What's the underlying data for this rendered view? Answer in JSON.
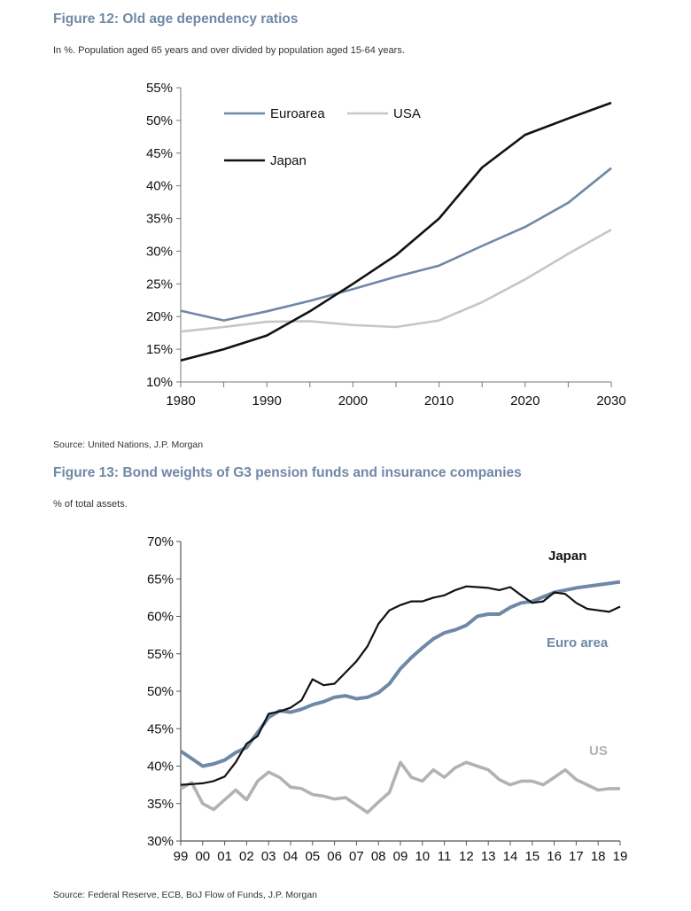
{
  "figure12": {
    "title": "Figure 12: Old age dependency ratios",
    "subtitle": "In %. Population aged 65 years and over divided by population aged 15-64 years.",
    "source": "Source: United Nations, J.P. Morgan"
  },
  "figure13": {
    "title": "Figure 13: Bond weights of G3 pension funds and insurance companies",
    "subtitle": "% of total assets.",
    "source": "Source: Federal Reserve, ECB, BoJ Flow of Funds, J.P. Morgan"
  },
  "chart_data": [
    {
      "type": "line",
      "title": "Figure 12: Old age dependency ratios",
      "xlabel": "",
      "ylabel": "",
      "xlim": [
        1980,
        2030
      ],
      "ylim": [
        10,
        55
      ],
      "x_ticks": [
        "1980",
        "1990",
        "2000",
        "2010",
        "2020",
        "2030"
      ],
      "y_ticks": [
        "10%",
        "15%",
        "20%",
        "25%",
        "30%",
        "35%",
        "40%",
        "45%",
        "50%",
        "55%"
      ],
      "legend_position": "top-left",
      "grid": false,
      "x": [
        1980,
        1985,
        1990,
        1995,
        2000,
        2005,
        2010,
        2015,
        2020,
        2025,
        2030
      ],
      "series": [
        {
          "name": "Euroarea",
          "color": "#6f88a6",
          "values": [
            20.9,
            19.4,
            20.8,
            22.4,
            24.2,
            26.1,
            27.8,
            30.8,
            33.7,
            37.4,
            42.7
          ]
        },
        {
          "name": "USA",
          "color": "#c4c6c8",
          "values": [
            17.7,
            18.4,
            19.2,
            19.3,
            18.7,
            18.4,
            19.4,
            22.2,
            25.7,
            29.6,
            33.3
          ]
        },
        {
          "name": "Japan",
          "color": "#111111",
          "values": [
            13.3,
            15.0,
            17.1,
            20.8,
            25.0,
            29.4,
            35.0,
            42.8,
            47.8,
            50.3,
            52.7
          ]
        }
      ]
    },
    {
      "type": "line",
      "title": "Figure 13: Bond weights of G3 pension funds and insurance companies",
      "xlabel": "",
      "ylabel": "",
      "xlim": [
        1999,
        2019
      ],
      "ylim": [
        30,
        70
      ],
      "x_ticks": [
        "99",
        "00",
        "01",
        "02",
        "03",
        "04",
        "05",
        "06",
        "07",
        "08",
        "09",
        "10",
        "11",
        "12",
        "13",
        "14",
        "15",
        "16",
        "17",
        "18",
        "19"
      ],
      "y_ticks": [
        "30%",
        "35%",
        "40%",
        "45%",
        "50%",
        "55%",
        "60%",
        "65%",
        "70%"
      ],
      "legend_position": "inline labels",
      "grid": false,
      "series": [
        {
          "name": "Japan",
          "color": "#111111",
          "x": [
            1999.0,
            1999.5,
            2000.0,
            2000.5,
            2001.0,
            2001.5,
            2002.0,
            2002.5,
            2003.0,
            2003.5,
            2004.0,
            2004.5,
            2005.0,
            2005.5,
            2006.0,
            2006.5,
            2007.0,
            2007.5,
            2008.0,
            2008.5,
            2009.0,
            2009.5,
            2010.0,
            2010.5,
            2011.0,
            2011.5,
            2012.0,
            2012.5,
            2013.0,
            2013.5,
            2014.0,
            2014.5,
            2015.0,
            2015.5,
            2016.0,
            2016.5,
            2017.0,
            2017.5,
            2018.0,
            2018.5,
            2019.0
          ],
          "values": [
            37.5,
            37.6,
            37.7,
            38.0,
            38.6,
            40.5,
            43.0,
            44.0,
            47.0,
            47.3,
            47.8,
            48.8,
            51.6,
            50.8,
            51.0,
            52.5,
            54.0,
            56.0,
            59.0,
            60.8,
            61.5,
            62.0,
            62.0,
            62.5,
            62.8,
            63.5,
            64.0,
            63.9,
            63.8,
            63.5,
            63.9,
            62.8,
            61.8,
            62.0,
            63.2,
            63.0,
            61.8,
            61.0,
            60.8,
            60.6,
            61.3
          ]
        },
        {
          "name": "Euro area",
          "color": "#6f88a6",
          "x": [
            1999.0,
            1999.5,
            2000.0,
            2000.5,
            2001.0,
            2001.5,
            2002.0,
            2002.5,
            2003.0,
            2003.5,
            2004.0,
            2004.5,
            2005.0,
            2005.5,
            2006.0,
            2006.5,
            2007.0,
            2007.5,
            2008.0,
            2008.5,
            2009.0,
            2009.5,
            2010.0,
            2010.5,
            2011.0,
            2011.5,
            2012.0,
            2012.5,
            2013.0,
            2013.5,
            2014.0,
            2014.5,
            2015.0,
            2015.5,
            2016.0,
            2016.5,
            2017.0,
            2017.5,
            2018.0,
            2018.5,
            2019.0
          ],
          "values": [
            42.0,
            41.0,
            40.0,
            40.3,
            40.8,
            41.8,
            42.5,
            44.5,
            46.5,
            47.4,
            47.2,
            47.6,
            48.2,
            48.6,
            49.2,
            49.4,
            49.0,
            49.2,
            49.8,
            51.0,
            53.0,
            54.5,
            55.8,
            57.0,
            57.8,
            58.2,
            58.8,
            60.0,
            60.3,
            60.3,
            61.2,
            61.8,
            62.0,
            62.6,
            63.2,
            63.5,
            63.8,
            64.0,
            64.2,
            64.4,
            64.6
          ]
        },
        {
          "name": "US",
          "color": "#b0b2b4",
          "x": [
            1999.0,
            1999.5,
            2000.0,
            2000.5,
            2001.0,
            2001.5,
            2002.0,
            2002.5,
            2003.0,
            2003.5,
            2004.0,
            2004.5,
            2005.0,
            2005.5,
            2006.0,
            2006.5,
            2007.0,
            2007.5,
            2008.0,
            2008.5,
            2009.0,
            2009.5,
            2010.0,
            2010.5,
            2011.0,
            2011.5,
            2012.0,
            2012.5,
            2013.0,
            2013.5,
            2014.0,
            2014.5,
            2015.0,
            2015.5,
            2016.0,
            2016.5,
            2017.0,
            2017.5,
            2018.0,
            2018.5,
            2019.0
          ],
          "values": [
            37.0,
            37.8,
            35.0,
            34.2,
            35.5,
            36.8,
            35.5,
            38.0,
            39.2,
            38.5,
            37.2,
            37.0,
            36.2,
            36.0,
            35.6,
            35.8,
            34.8,
            33.8,
            35.2,
            36.5,
            40.5,
            38.5,
            38.0,
            39.5,
            38.5,
            39.8,
            40.5,
            40.0,
            39.5,
            38.2,
            37.5,
            38.0,
            38.0,
            37.5,
            38.5,
            39.5,
            38.2,
            37.5,
            36.8,
            37.0,
            37.0
          ]
        }
      ]
    }
  ]
}
